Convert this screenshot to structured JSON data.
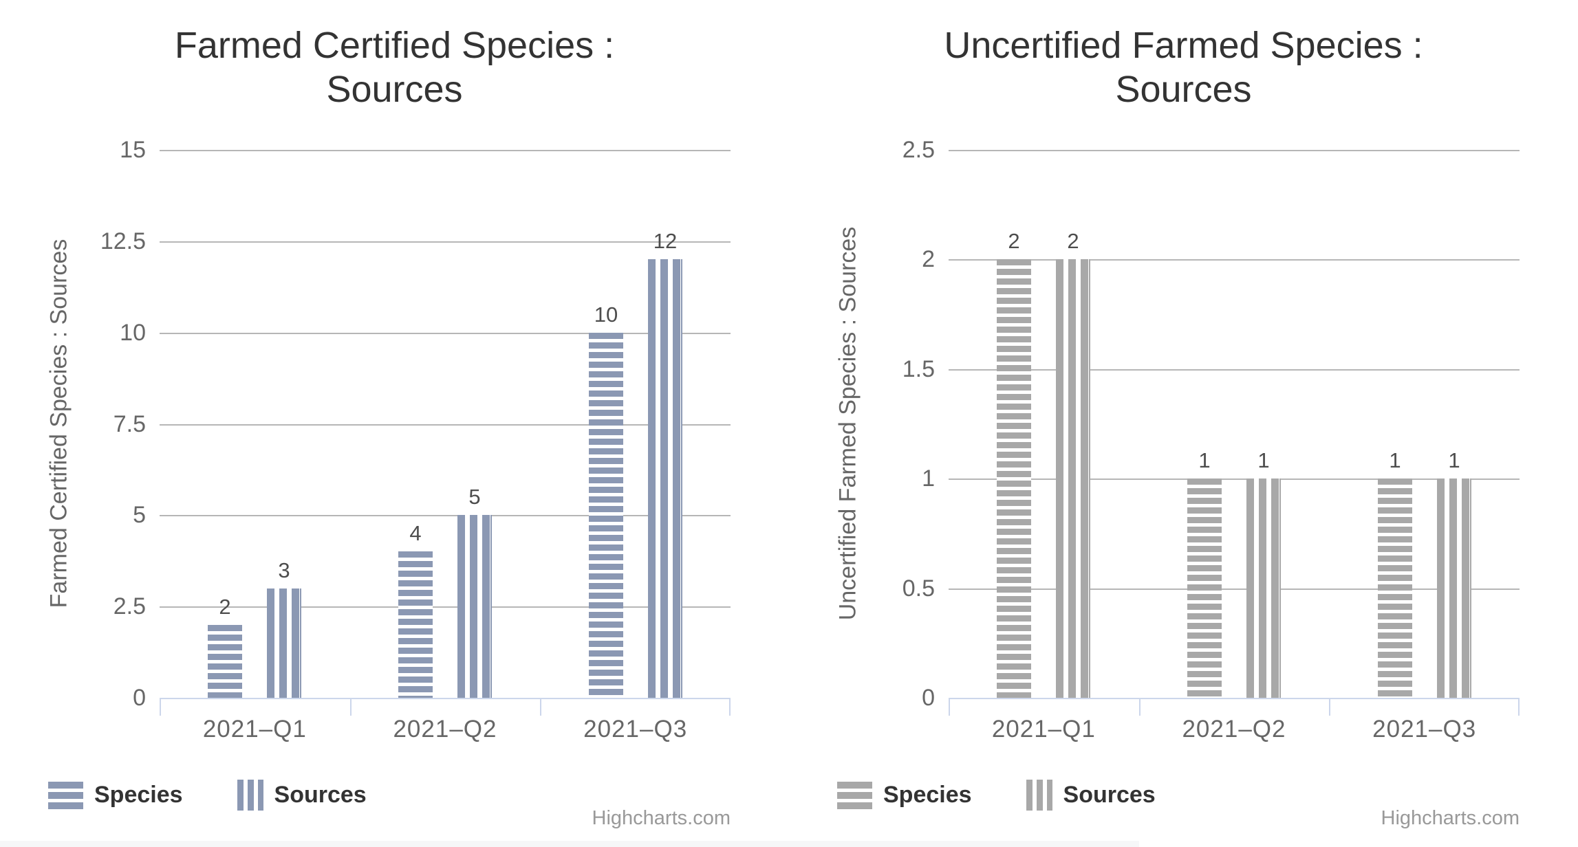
{
  "charts": [
    {
      "title": "Farmed Certified Species : Sources",
      "yaxis_title": "Farmed Certified Species : Sources",
      "credits": "Highcharts.com",
      "series_color": "#8b98b3",
      "legend": [
        {
          "name": "Species",
          "pattern": "horizontal-stripes"
        },
        {
          "name": "Sources",
          "pattern": "vertical-stripes"
        }
      ]
    },
    {
      "title": "Uncertified Farmed Species : Sources",
      "yaxis_title": "Uncertified Farmed Species : Sources",
      "credits": "Highcharts.com",
      "series_color": "#a8a8a8",
      "legend": [
        {
          "name": "Species",
          "pattern": "horizontal-stripes"
        },
        {
          "name": "Sources",
          "pattern": "vertical-stripes"
        }
      ]
    }
  ],
  "chart_data": [
    {
      "type": "bar",
      "title": "Farmed Certified Species : Sources",
      "categories": [
        "2021–Q1",
        "2021–Q2",
        "2021–Q3"
      ],
      "series": [
        {
          "name": "Species",
          "values": [
            2,
            4,
            10
          ],
          "pattern": "horizontal-stripes"
        },
        {
          "name": "Sources",
          "values": [
            3,
            5,
            12
          ],
          "pattern": "vertical-stripes"
        }
      ],
      "xlabel": "",
      "ylabel": "Farmed Certified Species : Sources",
      "ylim": [
        0,
        15
      ],
      "yticks": [
        "0",
        "2.5",
        "5",
        "7.5",
        "10",
        "12.5",
        "15"
      ],
      "grid": true,
      "data_labels": true,
      "legend_position": "bottom-left"
    },
    {
      "type": "bar",
      "title": "Uncertified Farmed Species : Sources",
      "categories": [
        "2021–Q1",
        "2021–Q2",
        "2021–Q3"
      ],
      "series": [
        {
          "name": "Species",
          "values": [
            2,
            1,
            1
          ],
          "pattern": "horizontal-stripes"
        },
        {
          "name": "Sources",
          "values": [
            2,
            1,
            1
          ],
          "pattern": "vertical-stripes"
        }
      ],
      "xlabel": "",
      "ylabel": "Uncertified Farmed Species : Sources",
      "ylim": [
        0,
        2.5
      ],
      "yticks": [
        "0",
        "0.5",
        "1",
        "1.5",
        "2",
        "2.5"
      ],
      "grid": true,
      "data_labels": true,
      "legend_position": "bottom-left"
    }
  ],
  "colors": {
    "left_series": "#8b98b3",
    "right_series": "#a8a8a8",
    "gridline": "#b6b6b6",
    "axis_line": "#ccd6eb",
    "title_text": "#333333",
    "tick_text": "#666666",
    "data_label_text": "#4d4d4d",
    "legend_text": "#333333",
    "credits_text": "#999999"
  }
}
